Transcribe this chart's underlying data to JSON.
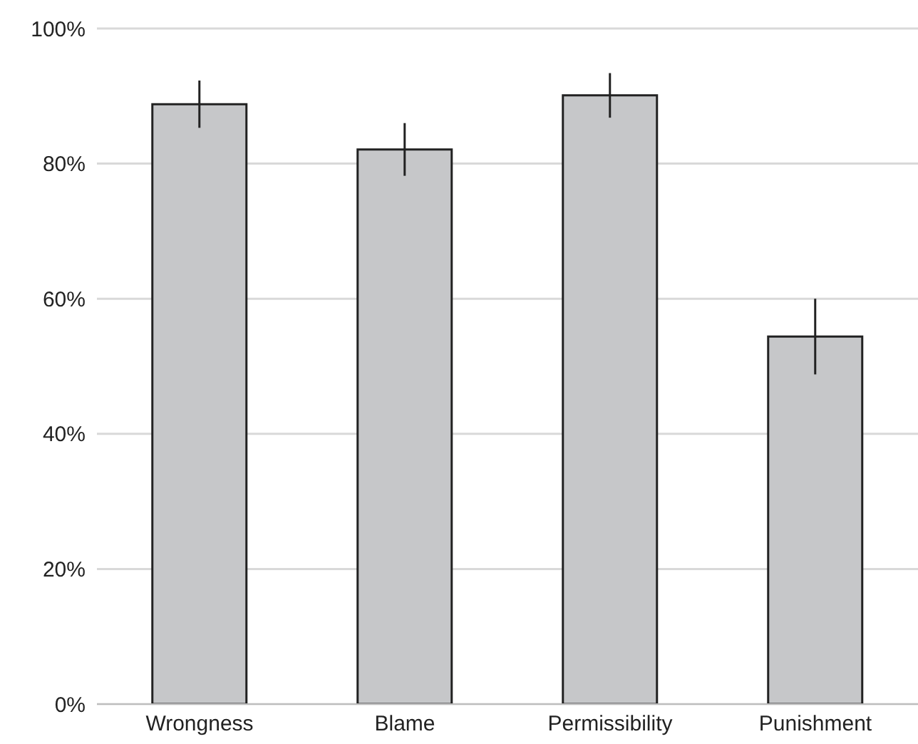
{
  "chart_data": {
    "type": "bar",
    "categories": [
      "Wrongness",
      "Blame",
      "Permissibility",
      "Punishment"
    ],
    "values": [
      88.8,
      82.1,
      90.1,
      54.4
    ],
    "errors": [
      3.5,
      3.9,
      3.3,
      5.6
    ],
    "color": "#c6c7c9",
    "ylim": [
      0,
      100
    ],
    "yticks": [
      {
        "value": 0,
        "label": "0%"
      },
      {
        "value": 20,
        "label": "20%"
      },
      {
        "value": 40,
        "label": "40%"
      },
      {
        "value": 60,
        "label": "60%"
      },
      {
        "value": 80,
        "label": "80%"
      },
      {
        "value": 100,
        "label": "100%"
      }
    ],
    "grid": "y"
  }
}
